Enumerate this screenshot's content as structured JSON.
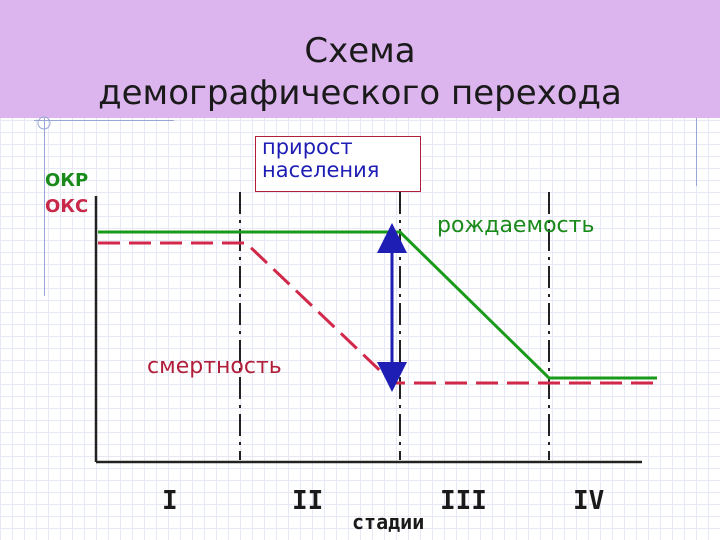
{
  "title": {
    "line1": "Схема",
    "line2": "демографического перехода"
  },
  "growth_box": {
    "line1": "прирост",
    "line2": "населения"
  },
  "labels": {
    "okr": "ОКР",
    "oks": "ОКС",
    "birth_rate": "рождаемость",
    "death_rate": "смертность",
    "stages_axis": "стадии"
  },
  "stages": [
    "I",
    "II",
    "III",
    "IV"
  ],
  "colors": {
    "title_band": "#dcb4ee",
    "birth_line": "#1a9a1a",
    "death_line": "#d2284a",
    "growth_arrow": "#1e1eb4",
    "okr_label": "#1a8a1a",
    "oks_label": "#c8284a"
  }
}
